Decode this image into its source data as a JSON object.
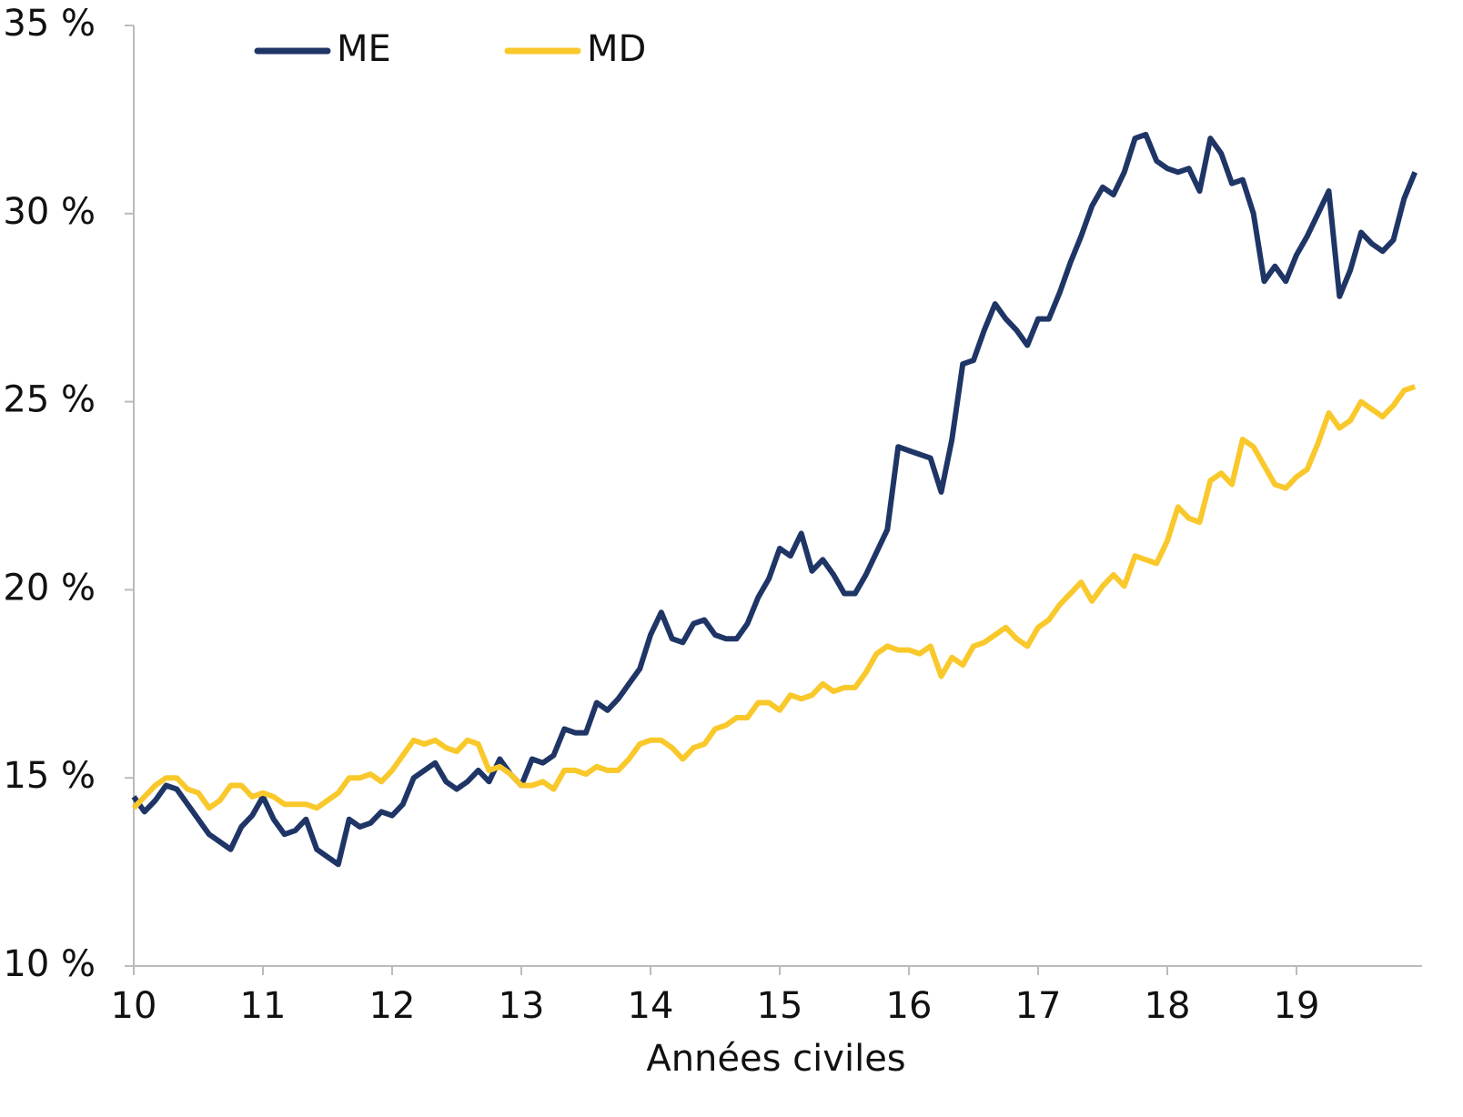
{
  "chart_data": {
    "type": "line",
    "x_label": "Années civiles",
    "x": [
      10,
      10.083,
      10.167,
      10.25,
      10.333,
      10.417,
      10.5,
      10.583,
      10.667,
      10.75,
      10.833,
      10.917,
      11,
      11.083,
      11.167,
      11.25,
      11.333,
      11.417,
      11.5,
      11.583,
      11.667,
      11.75,
      11.833,
      11.917,
      12,
      12.083,
      12.167,
      12.25,
      12.333,
      12.417,
      12.5,
      12.583,
      12.667,
      12.75,
      12.833,
      12.917,
      13,
      13.083,
      13.167,
      13.25,
      13.333,
      13.417,
      13.5,
      13.583,
      13.667,
      13.75,
      13.833,
      13.917,
      14,
      14.083,
      14.167,
      14.25,
      14.333,
      14.417,
      14.5,
      14.583,
      14.667,
      14.75,
      14.833,
      14.917,
      15,
      15.083,
      15.167,
      15.25,
      15.333,
      15.417,
      15.5,
      15.583,
      15.667,
      15.75,
      15.833,
      15.917,
      16,
      16.083,
      16.167,
      16.25,
      16.333,
      16.417,
      16.5,
      16.583,
      16.667,
      16.75,
      16.833,
      16.917,
      17,
      17.083,
      17.167,
      17.25,
      17.333,
      17.417,
      17.5,
      17.583,
      17.667,
      17.75,
      17.833,
      17.917,
      18,
      18.083,
      18.167,
      18.25,
      18.333,
      18.417,
      18.5,
      18.583,
      18.667,
      18.75,
      18.833,
      18.917,
      19,
      19.083,
      19.167,
      19.25,
      19.333,
      19.417,
      19.5,
      19.583,
      19.667,
      19.75,
      19.833,
      19.917
    ],
    "series": [
      {
        "name": "ME",
        "color": "#1f3566",
        "values": [
          14.5,
          14.1,
          14.4,
          14.8,
          14.7,
          14.3,
          13.9,
          13.5,
          13.3,
          13.1,
          13.7,
          14.0,
          14.5,
          13.9,
          13.5,
          13.6,
          13.9,
          13.1,
          12.9,
          12.7,
          13.9,
          13.7,
          13.8,
          14.1,
          14.0,
          14.3,
          15.0,
          15.2,
          15.4,
          14.9,
          14.7,
          14.9,
          15.2,
          14.9,
          15.5,
          15.1,
          14.8,
          15.5,
          15.4,
          15.6,
          16.3,
          16.2,
          16.2,
          17.0,
          16.8,
          17.1,
          17.5,
          17.9,
          18.8,
          19.4,
          18.7,
          18.6,
          19.1,
          19.2,
          18.8,
          18.7,
          18.7,
          19.1,
          19.8,
          20.3,
          21.1,
          20.9,
          21.5,
          20.5,
          20.8,
          20.4,
          19.9,
          19.9,
          20.4,
          21.0,
          21.6,
          23.8,
          23.7,
          23.6,
          23.5,
          22.6,
          24.0,
          26.0,
          26.1,
          26.9,
          27.6,
          27.2,
          26.9,
          26.5,
          27.2,
          27.2,
          27.9,
          28.7,
          29.4,
          30.2,
          30.7,
          30.5,
          31.1,
          32.0,
          32.1,
          31.4,
          31.2,
          31.1,
          31.2,
          30.6,
          32.0,
          31.6,
          30.8,
          30.9,
          30.0,
          28.2,
          28.6,
          28.2,
          28.9,
          29.4,
          30.0,
          30.6,
          27.8,
          28.5,
          29.5,
          29.2,
          29.0,
          29.3,
          30.4,
          31.1
        ]
      },
      {
        "name": "MD",
        "color": "#f9c82b",
        "values": [
          14.2,
          14.5,
          14.8,
          15.0,
          15.0,
          14.7,
          14.6,
          14.2,
          14.4,
          14.8,
          14.8,
          14.5,
          14.6,
          14.5,
          14.3,
          14.3,
          14.3,
          14.2,
          14.4,
          14.6,
          15.0,
          15.0,
          15.1,
          14.9,
          15.2,
          15.6,
          16.0,
          15.9,
          16.0,
          15.8,
          15.7,
          16.0,
          15.9,
          15.2,
          15.3,
          15.1,
          14.8,
          14.8,
          14.9,
          14.7,
          15.2,
          15.2,
          15.1,
          15.3,
          15.2,
          15.2,
          15.5,
          15.9,
          16.0,
          16.0,
          15.8,
          15.5,
          15.8,
          15.9,
          16.3,
          16.4,
          16.6,
          16.6,
          17.0,
          17.0,
          16.8,
          17.2,
          17.1,
          17.2,
          17.5,
          17.3,
          17.4,
          17.4,
          17.8,
          18.3,
          18.5,
          18.4,
          18.4,
          18.3,
          18.5,
          17.7,
          18.2,
          18.0,
          18.5,
          18.6,
          18.8,
          19.0,
          18.7,
          18.5,
          19.0,
          19.2,
          19.6,
          19.9,
          20.2,
          19.7,
          20.1,
          20.4,
          20.1,
          20.9,
          20.8,
          20.7,
          21.3,
          22.2,
          21.9,
          21.8,
          22.9,
          23.1,
          22.8,
          24.0,
          23.8,
          23.3,
          22.8,
          22.7,
          23.0,
          23.2,
          23.9,
          24.7,
          24.3,
          24.5,
          25.0,
          24.8,
          24.6,
          24.9,
          25.3,
          25.4
        ]
      }
    ],
    "xlim": [
      10,
      20
    ],
    "xticks": [
      10,
      11,
      12,
      13,
      14,
      15,
      16,
      17,
      18,
      19
    ],
    "ylim": [
      10,
      35
    ],
    "yticks": [
      {
        "value": 10,
        "label": "10 %"
      },
      {
        "value": 15,
        "label": "15 %"
      },
      {
        "value": 20,
        "label": "20 %"
      },
      {
        "value": 25,
        "label": "25 %"
      },
      {
        "value": 30,
        "label": "30 %"
      },
      {
        "value": 35,
        "label": "35 %"
      }
    ],
    "grid": false,
    "legend": "top-left"
  }
}
